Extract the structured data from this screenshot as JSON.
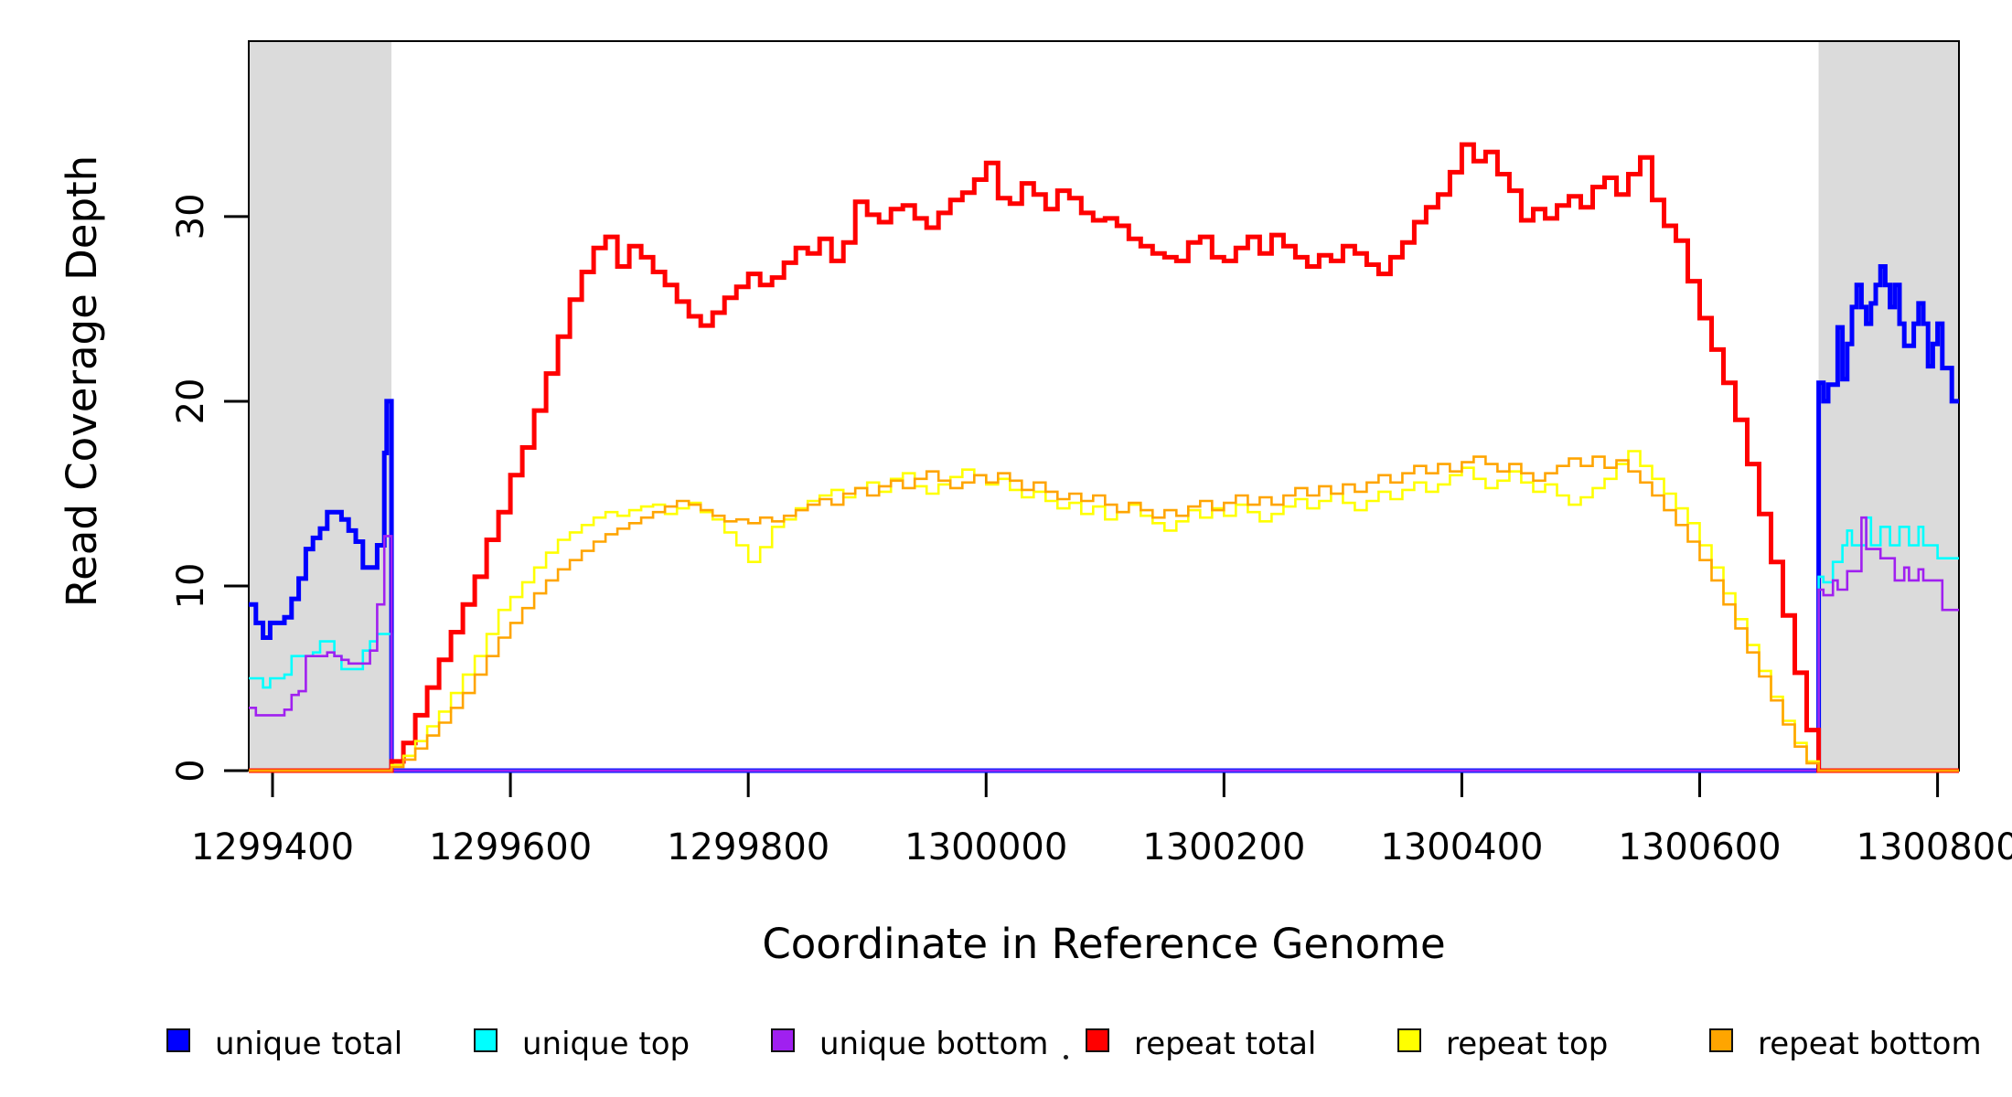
{
  "figure": {
    "background": "#ffffff"
  },
  "chart_data": {
    "type": "line",
    "subtype": "step",
    "title": "",
    "xlabel": "Coordinate in Reference Genome",
    "ylabel": "Read Coverage Depth",
    "x_range": [
      1299380,
      1300818
    ],
    "y_range": [
      0,
      39.5
    ],
    "x_ticks": [
      1299400,
      1299600,
      1299800,
      1300000,
      1300200,
      1300400,
      1300600,
      1300800
    ],
    "y_ticks": [
      0,
      10,
      20,
      30
    ],
    "grid": false,
    "legend_position": "bottom",
    "shade_color": "#dbdbdb",
    "shaded_regions": [
      {
        "x0": 1299380,
        "x1": 1299500
      },
      {
        "x0": 1300700,
        "x1": 1300818
      }
    ],
    "series": [
      {
        "name": "unique-total",
        "legend": "unique total",
        "color": "#0000ff",
        "line_width": 5,
        "segments": [
          {
            "x0": 1299380,
            "dx": 6,
            "v": [
              9,
              8,
              7.2,
              8,
              8,
              8.3,
              9.3,
              10.4,
              12,
              12.6,
              13.1,
              14,
              14,
              13.6,
              13,
              12.4,
              11,
              11,
              12.2,
              17.2
            ]
          },
          {
            "x0": 1299496,
            "dx": 4,
            "v": [
              20
            ]
          },
          {
            "x0": 1299500,
            "dx": 1,
            "v": [
              0
            ]
          },
          {
            "x0": 1300700,
            "dx": 4,
            "v": [
              21,
              20,
              20.9,
              20.9,
              24,
              21.2,
              23.1,
              25.1,
              26.3,
              25.1,
              24.2,
              25.3,
              26.3,
              27.3,
              26.3,
              25.1,
              26.3,
              24.2,
              23,
              23,
              24.2,
              25.3,
              24.2,
              21.9,
              23.1,
              24.2,
              21.8,
              21.8,
              20
            ]
          }
        ]
      },
      {
        "name": "unique-top",
        "legend": "unique top",
        "color": "#00ffff",
        "line_width": 2.6,
        "segments": [
          {
            "x0": 1299380,
            "dx": 6,
            "v": [
              5,
              5,
              4.5,
              5,
              5,
              5.2,
              6.2,
              6.2,
              6.2,
              6.4,
              7,
              7,
              6.2,
              5.5,
              5.5,
              5.5,
              6.5,
              7,
              7.4,
              7.4
            ]
          },
          {
            "x0": 1299500,
            "dx": 1,
            "v": [
              0
            ]
          },
          {
            "x0": 1300700,
            "dx": 4,
            "v": [
              10.5,
              10.2,
              10.2,
              11.3,
              11.3,
              12.2,
              13,
              12.2,
              12.2,
              12.2,
              13.7,
              12.2,
              12.2,
              13.2,
              13.2,
              12.2,
              12.2,
              13.2,
              13.2,
              12.2,
              12.2,
              13.2,
              12.2,
              12.2,
              12.2,
              11.5,
              11.5,
              11.5,
              11.5
            ]
          }
        ]
      },
      {
        "name": "unique-bottom",
        "legend": "unique bottom",
        "color": "#a020f0",
        "line_width": 2.6,
        "segments": [
          {
            "x0": 1299380,
            "dx": 6,
            "v": [
              3.4,
              3,
              3,
              3,
              3,
              3.3,
              4.1,
              4.3,
              6.2,
              6.2,
              6.2,
              6.4,
              6.2,
              6,
              5.8,
              5.8,
              5.8,
              6.5,
              9,
              12.7
            ]
          },
          {
            "x0": 1299500,
            "dx": 1,
            "v": [
              0
            ]
          },
          {
            "x0": 1300700,
            "dx": 4,
            "v": [
              9.8,
              9.5,
              9.5,
              10.3,
              9.8,
              9.8,
              10.8,
              10.8,
              10.8,
              13.7,
              12,
              12,
              12,
              11.5,
              11.5,
              11.5,
              10.3,
              10.3,
              11,
              10.3,
              10.3,
              10.9,
              10.3,
              10.3,
              10.3,
              10.3,
              8.7,
              8.7,
              8.7
            ]
          }
        ]
      },
      {
        "name": "repeat-total",
        "legend": "repeat total",
        "color": "#ff0000",
        "line_width": 5,
        "segments": [
          {
            "x0": 1299380,
            "dx": 1,
            "v": [
              0
            ]
          },
          {
            "x0": 1299500,
            "dx": 10,
            "v": [
              0.5,
              1.5,
              3.0,
              4.5,
              6.0,
              7.5,
              9.0,
              10.5,
              12.5,
              14.0,
              16.0,
              17.5,
              19.5,
              21.5,
              23.5,
              25.5,
              27.0,
              28.3,
              28.9,
              27.3,
              28.4,
              27.8,
              27.0,
              26.3,
              25.4,
              24.6,
              24.1,
              24.8,
              25.6,
              26.2,
              26.9,
              26.3,
              26.7,
              27.5,
              28.3,
              28.0,
              28.8,
              27.6,
              28.6,
              30.8,
              30.1,
              29.7,
              30.4,
              30.6,
              29.9,
              29.4,
              30.2,
              30.9,
              31.3,
              32.0,
              32.9,
              31.0,
              30.7,
              31.8,
              31.2,
              30.4,
              31.4,
              31.0,
              30.2,
              29.8,
              29.9,
              29.5,
              28.8,
              28.4,
              28.0,
              27.8,
              27.6,
              28.6,
              28.9,
              27.8,
              27.6,
              28.3,
              28.9,
              28.0,
              29.0,
              28.4,
              27.8,
              27.3,
              27.9,
              27.6,
              28.4,
              28.0,
              27.4,
              26.9,
              27.8,
              28.6,
              29.7,
              30.5,
              31.2,
              32.4,
              33.9,
              33.0,
              33.5,
              32.3,
              31.4,
              29.8,
              30.4,
              29.9,
              30.6,
              31.1,
              30.5,
              31.6,
              32.1,
              31.2,
              32.3,
              33.2,
              30.9,
              29.5,
              28.7,
              26.5,
              24.5,
              22.8,
              21.0,
              19.0,
              16.6,
              13.9,
              11.3,
              8.4,
              5.3,
              2.2,
              0
            ]
          }
        ]
      },
      {
        "name": "repeat-top",
        "legend": "repeat top",
        "color": "#ffff00",
        "line_width": 2.6,
        "segments": [
          {
            "x0": 1299380,
            "dx": 1,
            "v": [
              0
            ]
          },
          {
            "x0": 1299500,
            "dx": 10,
            "v": [
              0.3,
              0.8,
              1.6,
              2.4,
              3.2,
              4.2,
              5.2,
              6.2,
              7.4,
              8.7,
              9.4,
              10.2,
              11.0,
              11.8,
              12.5,
              12.9,
              13.3,
              13.7,
              14.0,
              13.8,
              14.1,
              14.3,
              14.4,
              13.9,
              14.2,
              14.5,
              14.0,
              13.6,
              12.9,
              12.2,
              11.3,
              12.1,
              13.2,
              13.6,
              14.2,
              14.6,
              14.9,
              15.2,
              14.8,
              15.3,
              15.6,
              15.1,
              15.8,
              16.1,
              15.4,
              15.0,
              15.5,
              15.9,
              16.3,
              16.0,
              15.5,
              15.8,
              15.2,
              14.8,
              15.1,
              14.6,
              14.2,
              14.5,
              13.9,
              14.3,
              13.6,
              14.0,
              14.4,
              13.8,
              13.4,
              13.0,
              13.5,
              14.1,
              13.7,
              14.2,
              13.8,
              14.4,
              14.0,
              13.5,
              13.9,
              14.3,
              14.7,
              14.2,
              14.6,
              15.0,
              14.5,
              14.1,
              14.6,
              15.1,
              14.7,
              15.2,
              15.6,
              15.1,
              15.5,
              16.0,
              16.4,
              15.8,
              15.3,
              15.7,
              16.2,
              15.6,
              15.1,
              15.5,
              14.9,
              14.4,
              14.8,
              15.3,
              15.8,
              16.6,
              17.3,
              16.5,
              15.8,
              15.0,
              14.2,
              13.4,
              12.2,
              11.0,
              9.6,
              8.2,
              6.8,
              5.4,
              4.0,
              2.7,
              1.5,
              0.5,
              0
            ]
          }
        ]
      },
      {
        "name": "repeat-bottom",
        "legend": "repeat bottom",
        "color": "#ffa500",
        "line_width": 2.6,
        "segments": [
          {
            "x0": 1299380,
            "dx": 1,
            "v": [
              0
            ]
          },
          {
            "x0": 1299500,
            "dx": 10,
            "v": [
              0.2,
              0.6,
              1.2,
              1.9,
              2.6,
              3.4,
              4.2,
              5.2,
              6.2,
              7.2,
              8.0,
              8.8,
              9.6,
              10.3,
              10.9,
              11.4,
              11.9,
              12.4,
              12.8,
              13.1,
              13.4,
              13.7,
              14.0,
              14.3,
              14.6,
              14.4,
              14.1,
              13.8,
              13.5,
              13.6,
              13.4,
              13.7,
              13.5,
              13.8,
              14.1,
              14.4,
              14.7,
              14.4,
              15.0,
              15.3,
              14.9,
              15.4,
              15.7,
              15.3,
              15.8,
              16.2,
              15.7,
              15.3,
              15.6,
              16.0,
              15.6,
              16.1,
              15.7,
              15.2,
              15.6,
              15.1,
              14.7,
              15.0,
              14.6,
              14.9,
              14.4,
              14.0,
              14.5,
              14.1,
              13.7,
              14.1,
              13.8,
              14.3,
              14.6,
              14.1,
              14.5,
              14.9,
              14.4,
              14.8,
              14.4,
              14.9,
              15.3,
              14.9,
              15.4,
              15.0,
              15.5,
              15.1,
              15.6,
              16.0,
              15.6,
              16.1,
              16.5,
              16.1,
              16.6,
              16.2,
              16.7,
              17.0,
              16.6,
              16.2,
              16.6,
              16.1,
              15.7,
              16.1,
              16.5,
              16.9,
              16.5,
              17.0,
              16.4,
              16.8,
              16.2,
              15.6,
              14.9,
              14.1,
              13.3,
              12.4,
              11.4,
              10.3,
              9.0,
              7.7,
              6.4,
              5.1,
              3.8,
              2.5,
              1.3,
              0.4,
              0
            ]
          }
        ]
      }
    ]
  }
}
